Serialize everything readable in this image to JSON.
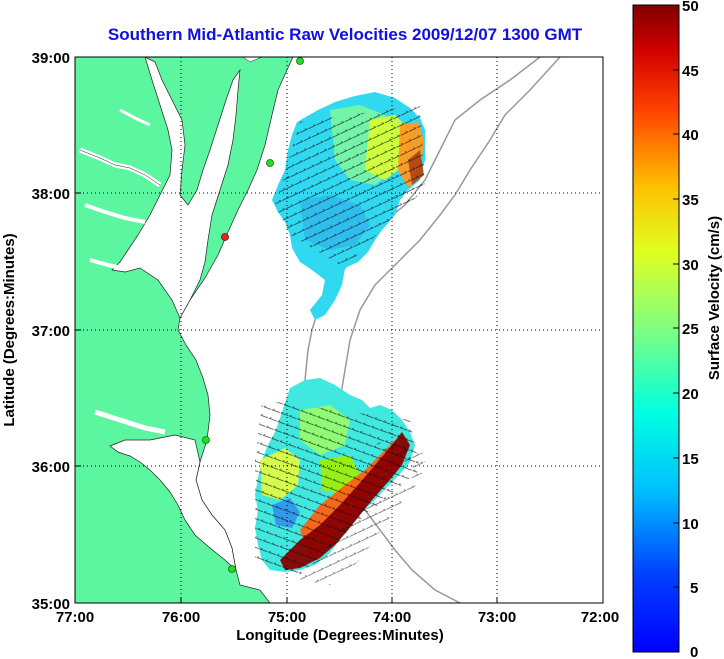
{
  "title": "Southern Mid-Atlantic Raw Velocities 2009/12/07 1300 GMT",
  "x_axis": {
    "label": "Longitude (Degrees:Minutes)",
    "ticks": [
      "77:00",
      "76:00",
      "75:00",
      "74:00",
      "73:00",
      "72:00"
    ]
  },
  "y_axis": {
    "label": "Latitude (Degrees:Minutes)",
    "ticks": [
      "39:00",
      "38:00",
      "37:00",
      "36:00",
      "35:00"
    ]
  },
  "colorbar": {
    "label": "Surface Velocity (cm/s)",
    "ticks": [
      "50",
      "45",
      "40",
      "35",
      "30",
      "25",
      "20",
      "15",
      "10",
      "5",
      "0"
    ],
    "min": 0,
    "max": 50
  },
  "colors": {
    "land": "#5cf5a0",
    "title": "#1010e0",
    "station_green": "#22dd22",
    "station_red": "#ee2222"
  }
}
